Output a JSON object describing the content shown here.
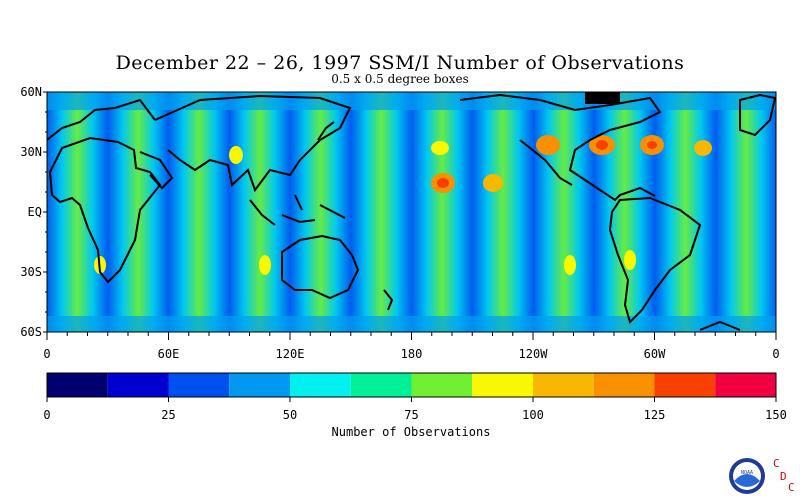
{
  "title": "December 22 – 26, 1997 SSM/I Number of Observations",
  "subtitle": "0.5 x 0.5 degree boxes",
  "lat_labels": [
    "60N",
    "30N",
    "EQ",
    "30S",
    "60S"
  ],
  "lon_labels": [
    "0",
    "60E",
    "120E",
    "180",
    "120W",
    "60W",
    "0"
  ],
  "colorbar": {
    "title": "Number of Observations",
    "tick_labels": [
      "0",
      "25",
      "50",
      "75",
      "100",
      "125",
      "150"
    ],
    "colors": [
      "#000070",
      "#0000d0",
      "#0050f0",
      "#0098f0",
      "#00f0f0",
      "#00f098",
      "#70f030",
      "#f8f800",
      "#f8b800",
      "#f89000",
      "#f84000",
      "#f00040"
    ]
  },
  "logo": {
    "icon": "noaa-logo",
    "letters": [
      "C",
      "D",
      "C"
    ]
  }
}
